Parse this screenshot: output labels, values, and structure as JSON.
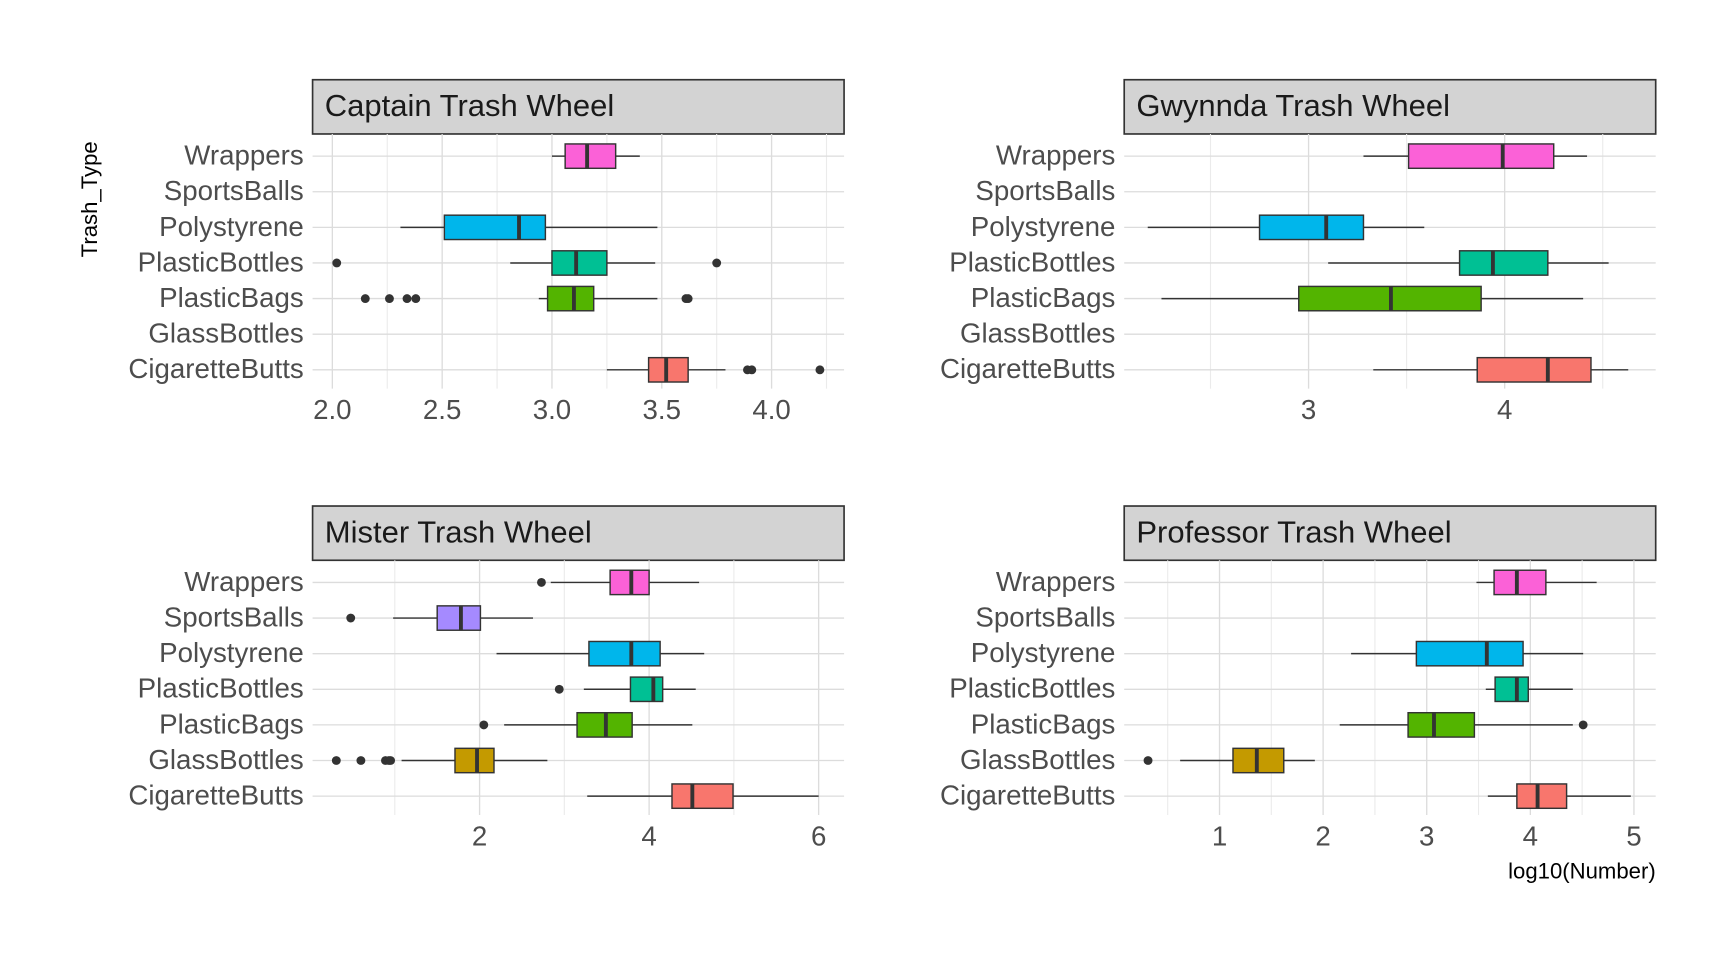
{
  "chart_data": [
    {
      "type": "boxplot",
      "title": "Captain Trash Wheel",
      "y_label": "Trash_Type",
      "categories": [
        "CigaretteButts",
        "GlassBottles",
        "PlasticBags",
        "PlasticBottles",
        "Polystyrene",
        "SportsBalls",
        "Wrappers"
      ],
      "colors": [
        "#F8766D",
        "#C49A00",
        "#53B400",
        "#00C094",
        "#00B6EB",
        "#A58AFF",
        "#FB61D7"
      ],
      "boxes": [
        {
          "min": 3.25,
          "q1": 3.44,
          "median": 3.52,
          "q3": 3.62,
          "max": 3.79,
          "outliers": [
            3.89,
            3.91,
            4.22
          ]
        },
        null,
        {
          "min": 2.94,
          "q1": 2.98,
          "median": 3.1,
          "q3": 3.19,
          "max": 3.48,
          "outliers": [
            2.15,
            2.26,
            2.34,
            2.38,
            3.61,
            3.62
          ]
        },
        {
          "min": 2.81,
          "q1": 3.0,
          "median": 3.11,
          "q3": 3.25,
          "max": 3.47,
          "outliers": [
            2.02,
            3.75
          ]
        },
        {
          "min": 2.31,
          "q1": 2.51,
          "median": 2.85,
          "q3": 2.97,
          "max": 3.48,
          "outliers": []
        },
        null,
        {
          "min": 3.0,
          "q1": 3.06,
          "median": 3.16,
          "q3": 3.29,
          "max": 3.4,
          "outliers": []
        }
      ],
      "xlim": [
        1.91,
        4.33
      ],
      "xticks": [
        {
          "value": 2,
          "label": "2.0"
        },
        2.5,
        {
          "value": 3,
          "label": "3.0"
        },
        3.5,
        {
          "value": 4,
          "label": "4.0"
        }
      ],
      "grid": true
    },
    {
      "type": "boxplot",
      "title": "Gwynnda Trash Wheel",
      "categories": [
        "CigaretteButts",
        "GlassBottles",
        "PlasticBags",
        "PlasticBottles",
        "Polystyrene",
        "SportsBalls",
        "Wrappers"
      ],
      "colors": [
        "#F8766D",
        "#C49A00",
        "#53B400",
        "#00C094",
        "#00B6EB",
        "#A58AFF",
        "#FB61D7"
      ],
      "boxes": [
        {
          "min": 3.33,
          "q1": 3.86,
          "median": 4.22,
          "q3": 4.44,
          "max": 4.63,
          "outliers": []
        },
        null,
        {
          "min": 2.25,
          "q1": 2.95,
          "median": 3.42,
          "q3": 3.88,
          "max": 4.4,
          "outliers": []
        },
        {
          "min": 3.1,
          "q1": 3.77,
          "median": 3.94,
          "q3": 4.22,
          "max": 4.53,
          "outliers": []
        },
        {
          "min": 2.18,
          "q1": 2.75,
          "median": 3.09,
          "q3": 3.28,
          "max": 3.59,
          "outliers": []
        },
        null,
        {
          "min": 3.28,
          "q1": 3.51,
          "median": 3.99,
          "q3": 4.25,
          "max": 4.42,
          "outliers": []
        }
      ],
      "xlim": [
        2.06,
        4.77
      ],
      "xticks": [
        3,
        4
      ],
      "grid": true
    },
    {
      "type": "boxplot",
      "title": "Mister Trash Wheel",
      "categories": [
        "CigaretteButts",
        "GlassBottles",
        "PlasticBags",
        "PlasticBottles",
        "Polystyrene",
        "SportsBalls",
        "Wrappers"
      ],
      "colors": [
        "#F8766D",
        "#C49A00",
        "#53B400",
        "#00C094",
        "#00B6EB",
        "#A58AFF",
        "#FB61D7"
      ],
      "boxes": [
        {
          "min": 3.27,
          "q1": 4.27,
          "median": 4.51,
          "q3": 4.99,
          "max": 6.0,
          "outliers": []
        },
        {
          "min": 1.08,
          "q1": 1.71,
          "median": 1.97,
          "q3": 2.17,
          "max": 2.8,
          "outliers": [
            0.31,
            0.6,
            0.89,
            0.93,
            0.95
          ]
        },
        {
          "min": 2.29,
          "q1": 3.15,
          "median": 3.49,
          "q3": 3.8,
          "max": 4.51,
          "outliers": [
            2.05
          ]
        },
        {
          "min": 3.23,
          "q1": 3.78,
          "median": 4.05,
          "q3": 4.16,
          "max": 4.55,
          "outliers": [
            2.94
          ]
        },
        {
          "min": 2.2,
          "q1": 3.29,
          "median": 3.79,
          "q3": 4.13,
          "max": 4.65,
          "outliers": []
        },
        {
          "min": 0.98,
          "q1": 1.5,
          "median": 1.78,
          "q3": 2.01,
          "max": 2.63,
          "outliers": [
            0.48
          ]
        },
        {
          "min": 2.84,
          "q1": 3.54,
          "median": 3.79,
          "q3": 4.0,
          "max": 4.59,
          "outliers": [
            2.73
          ]
        }
      ],
      "xlim": [
        0.03,
        6.3
      ],
      "xticks": [
        2,
        4,
        6
      ],
      "grid": true
    },
    {
      "type": "boxplot",
      "title": "Professor Trash Wheel",
      "x_label": "log10(Number)",
      "categories": [
        "CigaretteButts",
        "GlassBottles",
        "PlasticBags",
        "PlasticBottles",
        "Polystyrene",
        "SportsBalls",
        "Wrappers"
      ],
      "colors": [
        "#F8766D",
        "#C49A00",
        "#53B400",
        "#00C094",
        "#00B6EB",
        "#A58AFF",
        "#FB61D7"
      ],
      "boxes": [
        {
          "min": 3.59,
          "q1": 3.87,
          "median": 4.07,
          "q3": 4.35,
          "max": 4.97,
          "outliers": []
        },
        {
          "min": 0.62,
          "q1": 1.13,
          "median": 1.36,
          "q3": 1.62,
          "max": 1.92,
          "outliers": [
            0.31
          ]
        },
        {
          "min": 2.16,
          "q1": 2.82,
          "median": 3.07,
          "q3": 3.46,
          "max": 4.41,
          "outliers": [
            4.51
          ]
        },
        {
          "min": 3.57,
          "q1": 3.66,
          "median": 3.87,
          "q3": 3.98,
          "max": 4.41,
          "outliers": []
        },
        {
          "min": 2.27,
          "q1": 2.9,
          "median": 3.58,
          "q3": 3.93,
          "max": 4.51,
          "outliers": []
        },
        null,
        {
          "min": 3.48,
          "q1": 3.65,
          "median": 3.87,
          "q3": 4.15,
          "max": 4.64,
          "outliers": []
        }
      ],
      "xlim": [
        0.08,
        5.21
      ],
      "xticks": [
        1,
        2,
        3,
        4,
        5
      ],
      "grid": true
    }
  ]
}
